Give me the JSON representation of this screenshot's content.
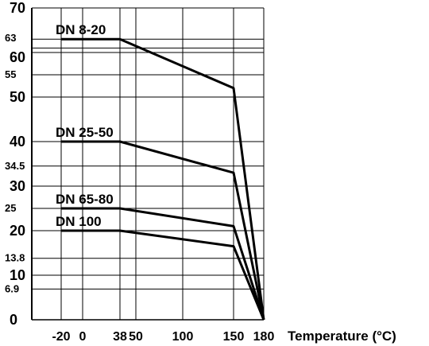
{
  "chart_data": {
    "type": "line",
    "title": "",
    "xlabel": "Temperature (°C)",
    "ylabel": "",
    "xlim": [
      -20,
      180
    ],
    "ylim": [
      0,
      70
    ],
    "grid": true,
    "x_ticks": [
      -20,
      0,
      38,
      50,
      100,
      150,
      180
    ],
    "x_tick_labels": [
      "-20",
      "0",
      "38",
      "50",
      "100",
      "150",
      "180"
    ],
    "y_ticks": [
      0,
      6.9,
      10,
      13.8,
      20,
      25,
      30,
      34.5,
      40,
      50,
      55,
      60,
      63,
      70
    ],
    "y_tick_labels": [
      "0",
      "6.9",
      "10",
      "13.8",
      "20",
      "25",
      "30",
      "34.5",
      "40",
      "50",
      "55",
      "60",
      "63",
      "70"
    ],
    "y_minor_ticks": [
      6.9,
      13.8,
      25,
      34.5,
      55,
      63
    ],
    "extra_gridlines": [
      61
    ],
    "series": [
      {
        "name": "DN 8-20",
        "points": [
          [
            -20,
            63
          ],
          [
            38,
            63
          ],
          [
            150,
            52
          ],
          [
            180,
            0
          ]
        ]
      },
      {
        "name": "DN 25-50",
        "points": [
          [
            -20,
            40
          ],
          [
            38,
            40
          ],
          [
            150,
            33
          ],
          [
            180,
            0
          ]
        ]
      },
      {
        "name": "DN 65-80",
        "points": [
          [
            -20,
            25
          ],
          [
            38,
            25
          ],
          [
            150,
            21
          ],
          [
            180,
            0
          ]
        ]
      },
      {
        "name": "DN 100",
        "points": [
          [
            -20,
            20
          ],
          [
            38,
            20
          ],
          [
            150,
            16.5
          ],
          [
            180,
            0
          ]
        ]
      }
    ],
    "series_colors": [
      "#000000",
      "#000000",
      "#000000",
      "#000000"
    ]
  }
}
